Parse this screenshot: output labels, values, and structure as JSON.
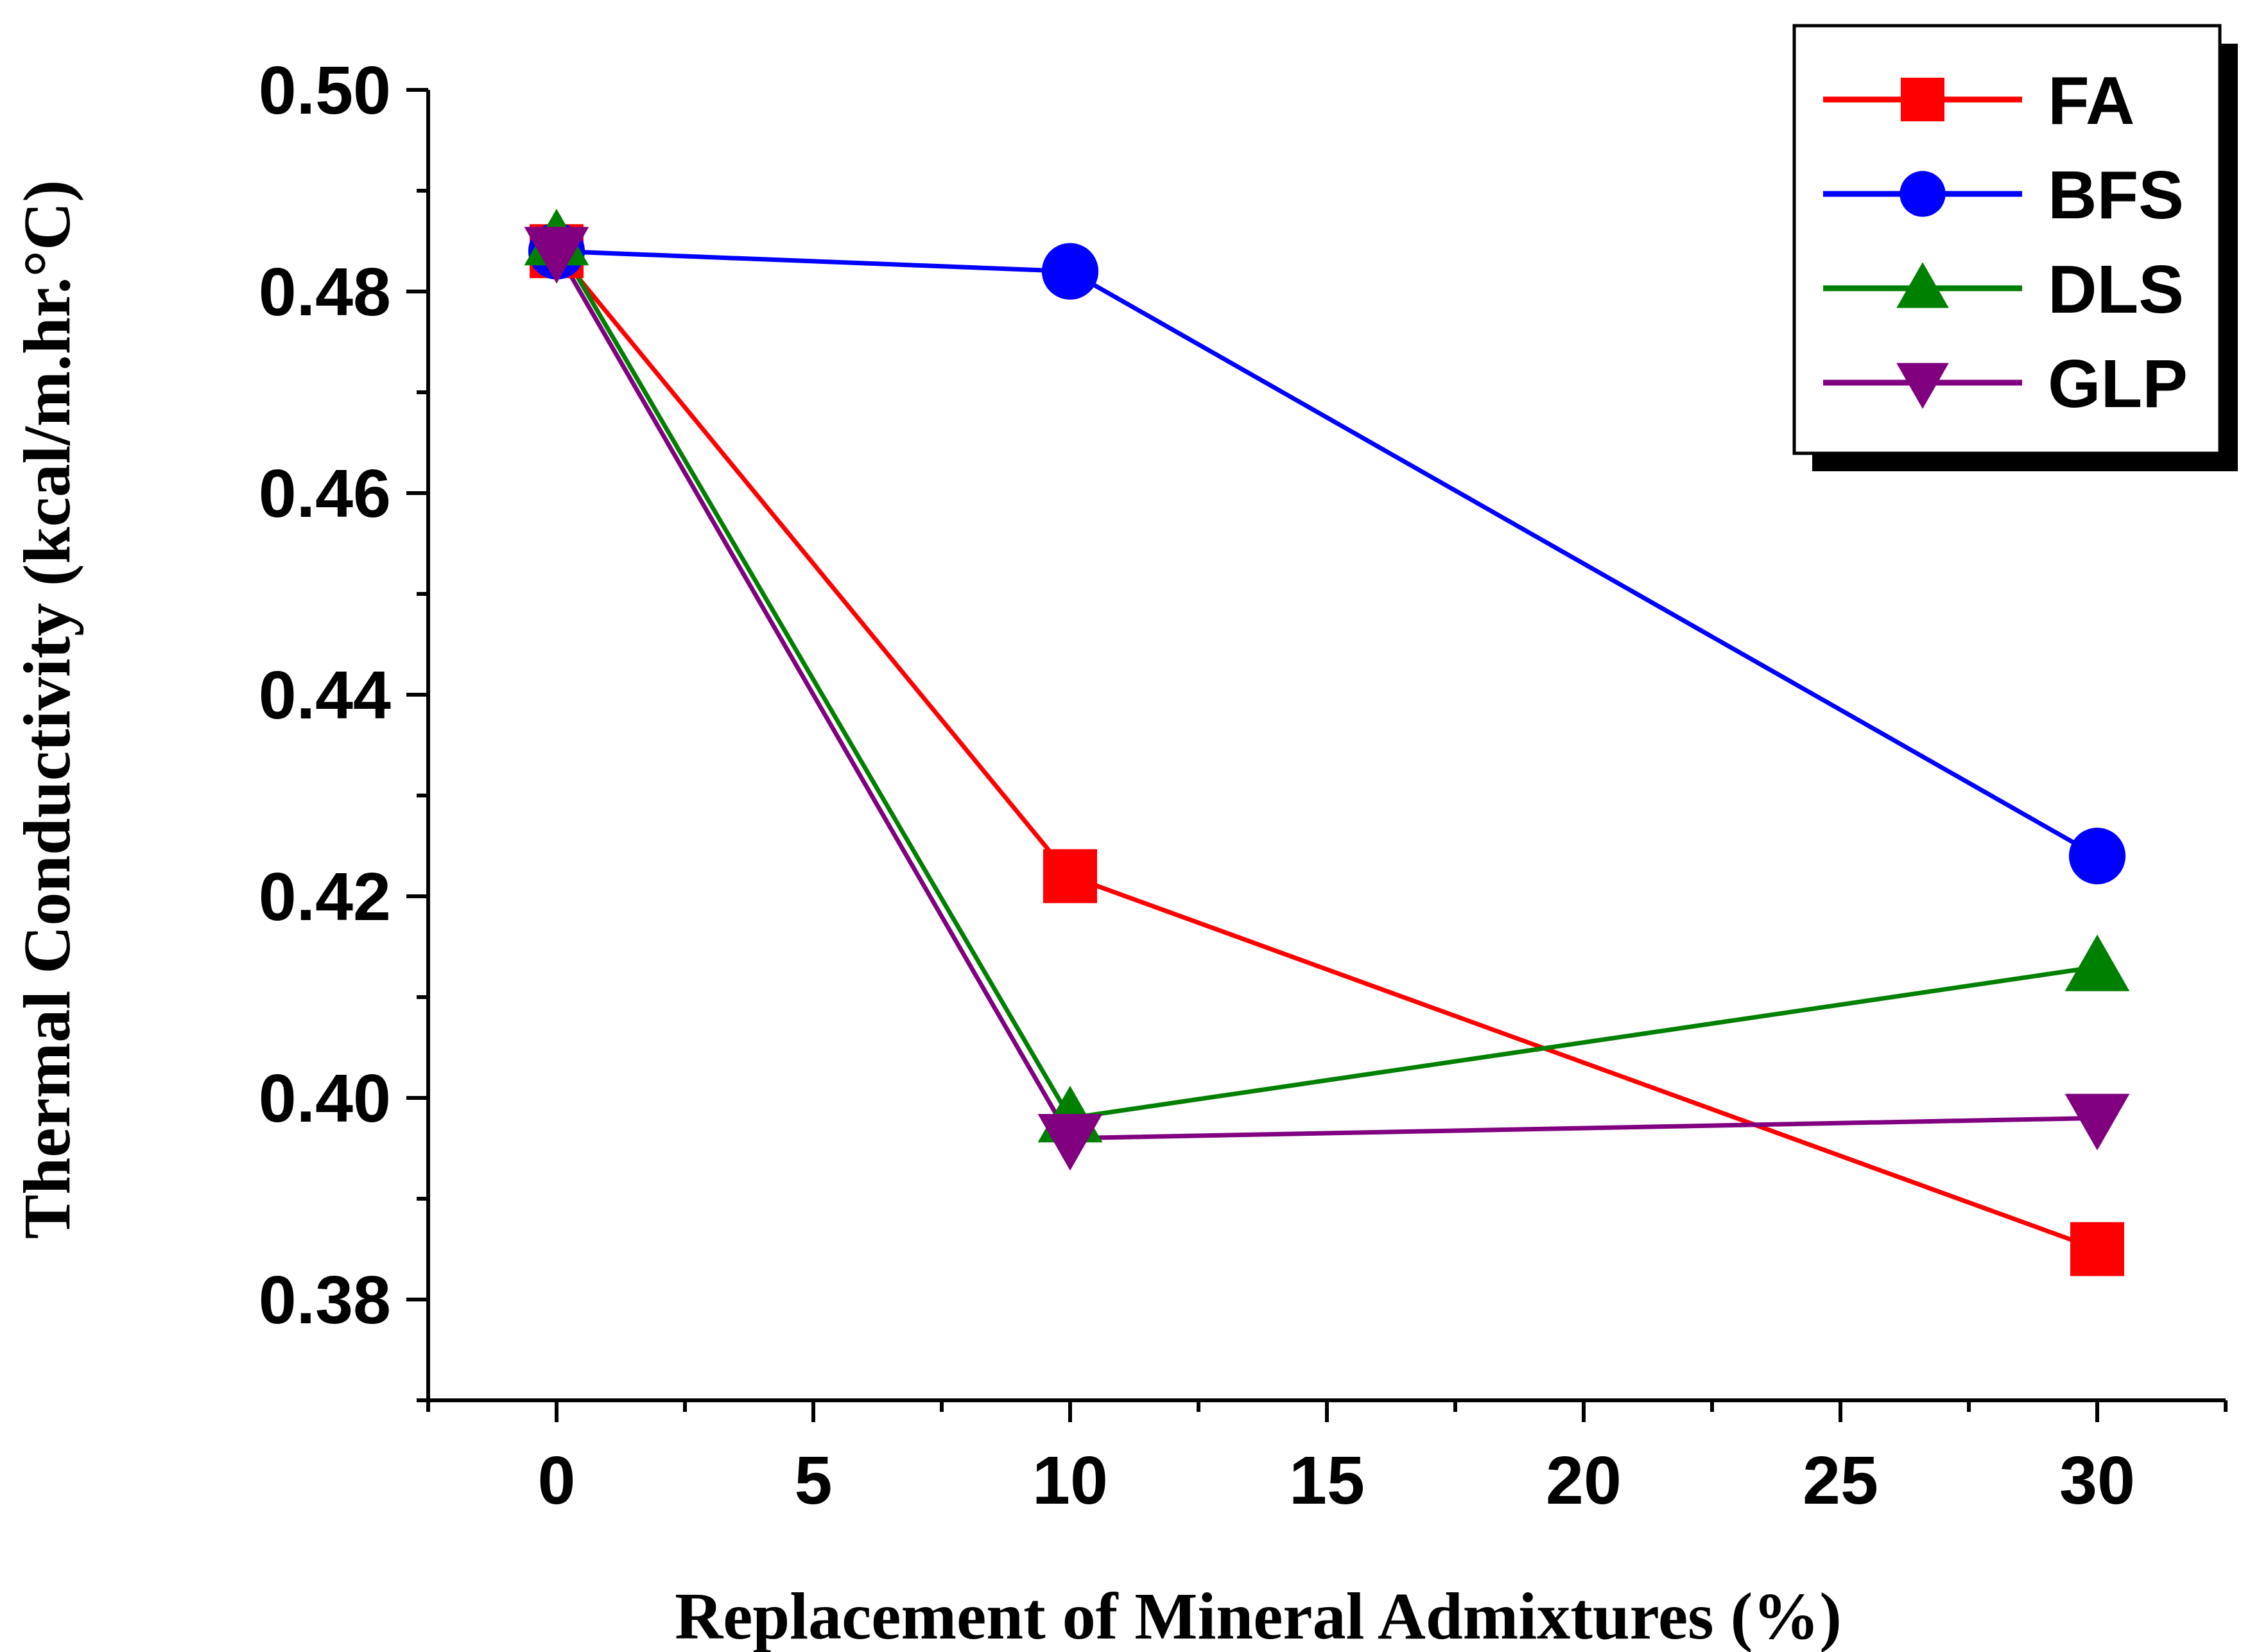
{
  "chart_data": {
    "type": "line",
    "title": "",
    "xlabel": "Replacement of Mineral Admixtures (%)",
    "ylabel": "Thermal Conductivity (kcal/m.hr.°C)",
    "xlim": [
      -2.5,
      32.5
    ],
    "ylim": [
      0.37,
      0.5
    ],
    "x_ticks": [
      0,
      5,
      10,
      15,
      20,
      25,
      30
    ],
    "x_tick_labels": [
      "0",
      "5",
      "10",
      "15",
      "20",
      "25",
      "30"
    ],
    "y_ticks": [
      0.38,
      0.4,
      0.42,
      0.44,
      0.46,
      0.48,
      0.5
    ],
    "y_tick_labels": [
      "0.38",
      "0.40",
      "0.42",
      "0.44",
      "0.46",
      "0.48",
      "0.50"
    ],
    "x": [
      0,
      10,
      30
    ],
    "grid": false,
    "legend_position": "top-right",
    "series": [
      {
        "name": "FA",
        "marker": "square",
        "color": "#ff0000",
        "values": [
          0.484,
          0.422,
          0.385
        ]
      },
      {
        "name": "BFS",
        "marker": "circle",
        "color": "#0000ff",
        "values": [
          0.484,
          0.482,
          0.424
        ]
      },
      {
        "name": "DLS",
        "marker": "triangle-up",
        "color": "#008000",
        "values": [
          0.485,
          0.398,
          0.413
        ]
      },
      {
        "name": "GLP",
        "marker": "triangle-down",
        "color": "#800080",
        "values": [
          0.484,
          0.396,
          0.398
        ]
      }
    ]
  }
}
